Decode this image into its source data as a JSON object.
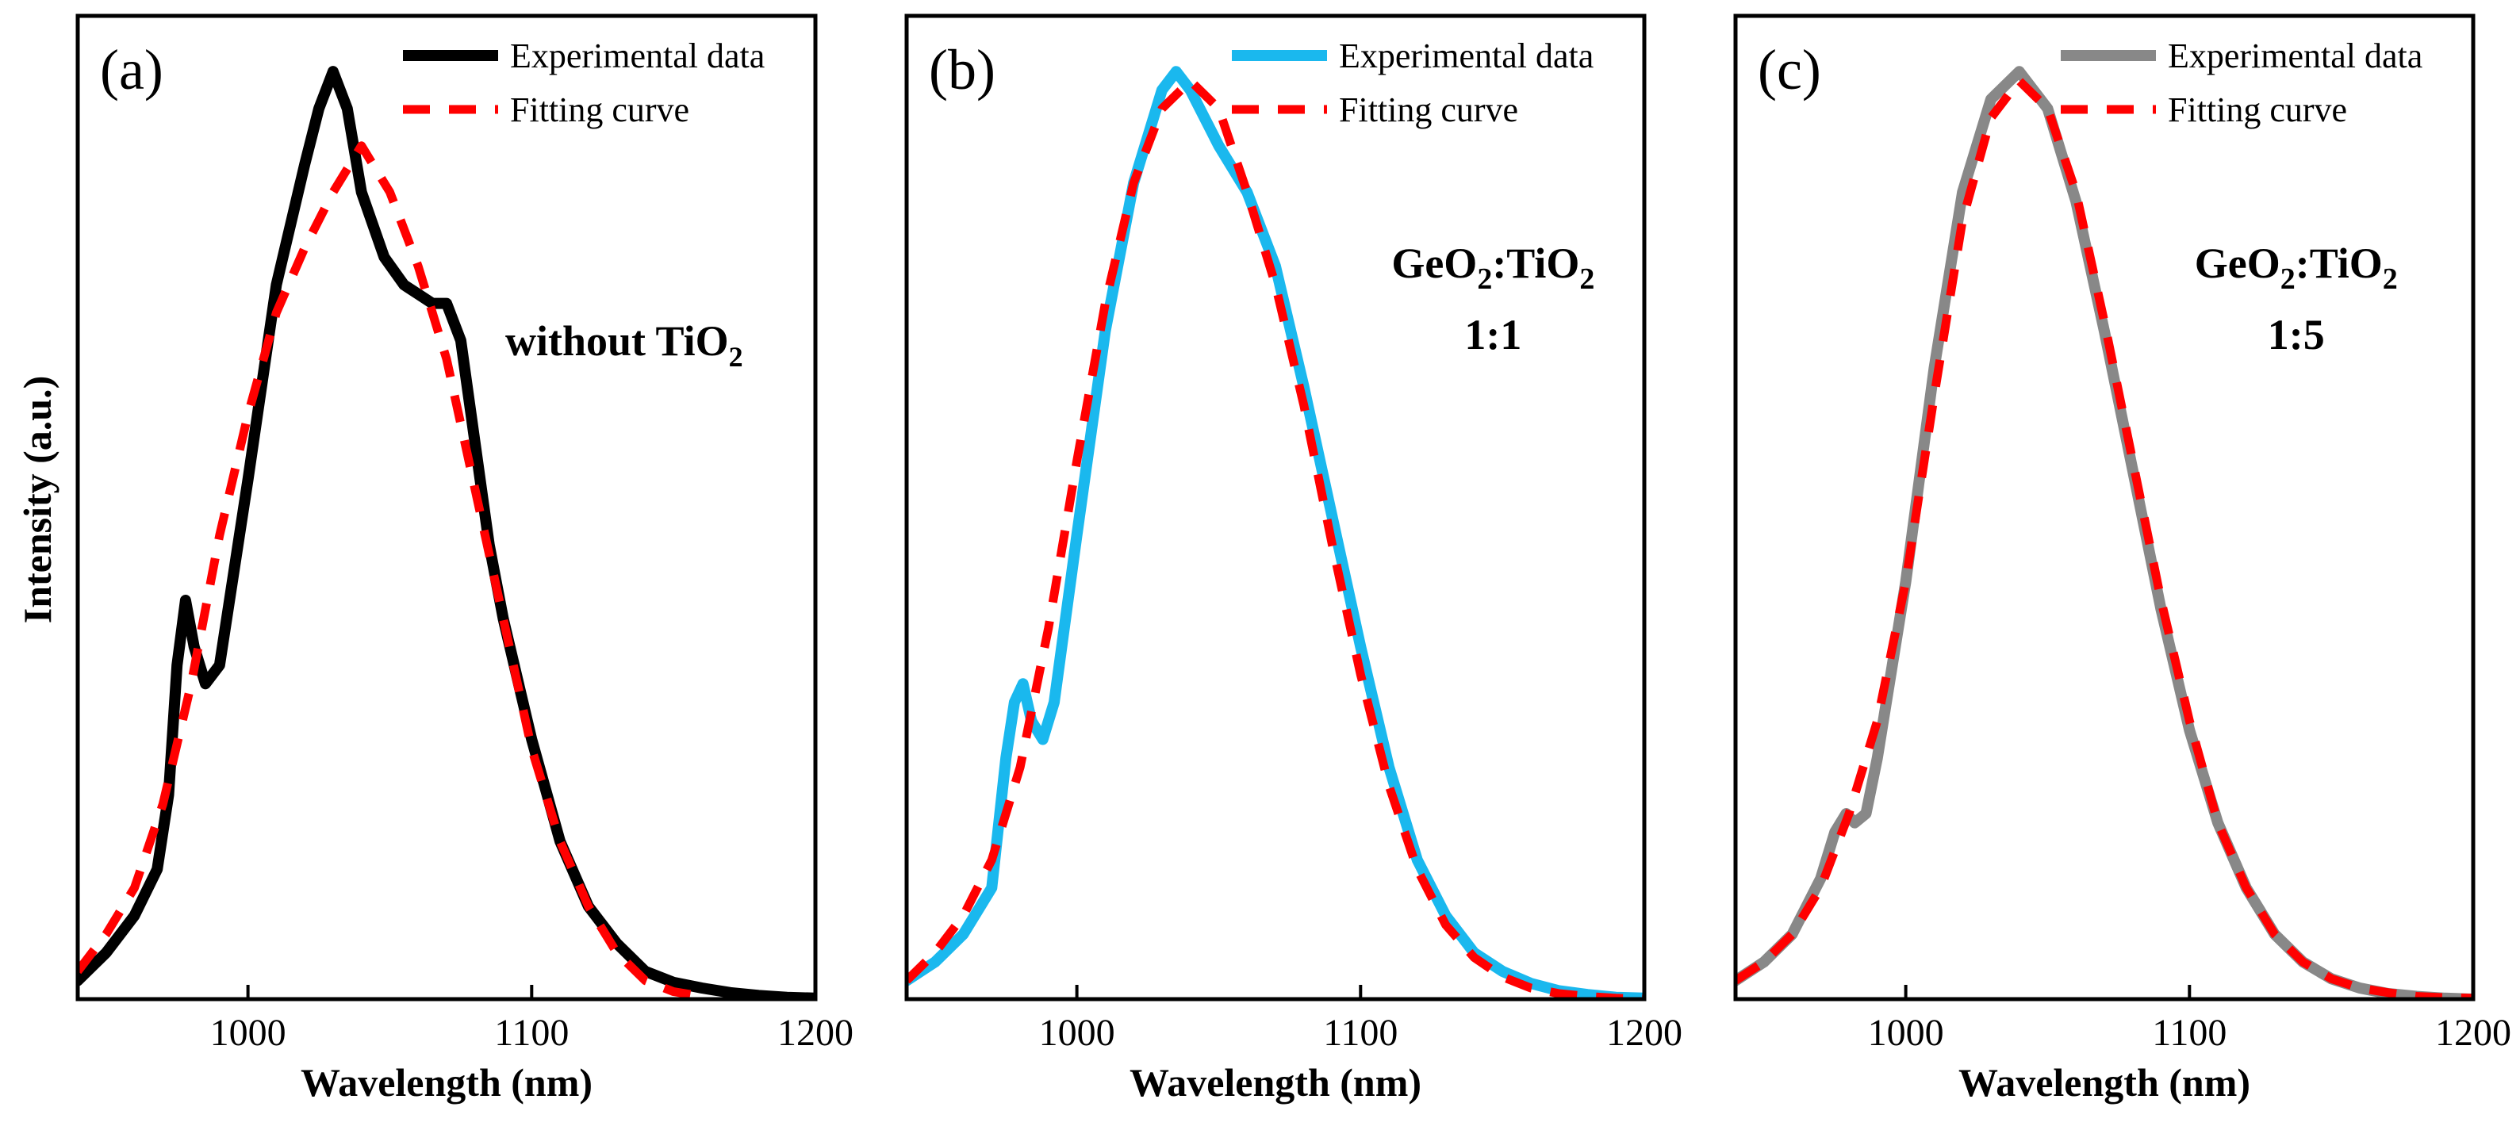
{
  "figure": {
    "ylabel": "Intensity (a.u.)"
  },
  "chart_data": [
    {
      "type": "line",
      "panel_label": "(a)",
      "xlabel": "Wavelength (nm)",
      "ylabel": "Intensity (a.u.)",
      "xlim": [
        940,
        1200
      ],
      "ylim": [
        0,
        1.06
      ],
      "xticks": [
        1000,
        1100,
        1200
      ],
      "xtick_labels": [
        "1000",
        "1100",
        "1200"
      ],
      "legend": {
        "position": "top-right",
        "entries": [
          "Experimental data",
          "Fitting curve"
        ]
      },
      "annotation": {
        "text": "without TiO",
        "subscript": "2"
      },
      "series": [
        {
          "name": "Experimental data",
          "color": "#000000",
          "style": "solid",
          "x": [
            940,
            950,
            960,
            968,
            972,
            975,
            978,
            981,
            985,
            990,
            1000,
            1010,
            1020,
            1025,
            1030,
            1035,
            1040,
            1048,
            1055,
            1060,
            1065,
            1070,
            1075,
            1080,
            1085,
            1090,
            1100,
            1110,
            1120,
            1130,
            1140,
            1150,
            1160,
            1170,
            1180,
            1190,
            1200
          ],
          "y": [
            0.02,
            0.05,
            0.09,
            0.14,
            0.22,
            0.36,
            0.43,
            0.38,
            0.34,
            0.36,
            0.56,
            0.77,
            0.9,
            0.96,
            1.0,
            0.96,
            0.87,
            0.8,
            0.77,
            0.76,
            0.75,
            0.75,
            0.71,
            0.6,
            0.49,
            0.41,
            0.28,
            0.17,
            0.1,
            0.06,
            0.03,
            0.018,
            0.012,
            0.007,
            0.004,
            0.002,
            0.001
          ]
        },
        {
          "name": "Fitting curve",
          "color": "#ff0000",
          "style": "dashed",
          "x": [
            940,
            950,
            960,
            970,
            980,
            990,
            1000,
            1010,
            1020,
            1030,
            1040,
            1050,
            1060,
            1070,
            1080,
            1090,
            1100,
            1110,
            1120,
            1130,
            1140,
            1150,
            1160
          ],
          "y": [
            0.03,
            0.07,
            0.12,
            0.21,
            0.34,
            0.5,
            0.63,
            0.74,
            0.81,
            0.87,
            0.92,
            0.87,
            0.79,
            0.69,
            0.55,
            0.41,
            0.27,
            0.17,
            0.1,
            0.05,
            0.02,
            0.008,
            0.003
          ]
        }
      ]
    },
    {
      "type": "line",
      "panel_label": "(b)",
      "xlabel": "Wavelength (nm)",
      "ylabel": "",
      "xlim": [
        940,
        1200
      ],
      "ylim": [
        0,
        1.06
      ],
      "xticks": [
        1000,
        1100,
        1200
      ],
      "xtick_labels": [
        "1000",
        "1100",
        "1200"
      ],
      "legend": {
        "position": "top-right",
        "entries": [
          "Experimental data",
          "Fitting curve"
        ]
      },
      "annotation": {
        "line1_main": "GeO",
        "line1_sub1": "2",
        "line1_mid": ":TiO",
        "line1_sub2": "2",
        "line2": "1:1"
      },
      "series": [
        {
          "name": "Experimental data",
          "color": "#1ab8ee",
          "style": "solid",
          "x": [
            940,
            950,
            960,
            970,
            975,
            978,
            981,
            984,
            988,
            992,
            1000,
            1010,
            1020,
            1030,
            1035,
            1040,
            1050,
            1060,
            1070,
            1080,
            1090,
            1100,
            1110,
            1120,
            1130,
            1140,
            1150,
            1160,
            1170,
            1180,
            1190,
            1200
          ],
          "y": [
            0.02,
            0.04,
            0.07,
            0.12,
            0.26,
            0.32,
            0.34,
            0.3,
            0.28,
            0.32,
            0.5,
            0.72,
            0.88,
            0.98,
            1.0,
            0.98,
            0.92,
            0.87,
            0.79,
            0.66,
            0.52,
            0.38,
            0.25,
            0.15,
            0.09,
            0.05,
            0.03,
            0.017,
            0.009,
            0.005,
            0.002,
            0.001
          ]
        },
        {
          "name": "Fitting curve",
          "color": "#ff0000",
          "style": "dashed",
          "x": [
            940,
            950,
            960,
            970,
            980,
            990,
            1000,
            1010,
            1020,
            1030,
            1040,
            1050,
            1060,
            1070,
            1080,
            1090,
            1100,
            1110,
            1120,
            1130,
            1140,
            1150,
            1160,
            1170,
            1180,
            1190,
            1200
          ],
          "y": [
            0.02,
            0.05,
            0.09,
            0.15,
            0.25,
            0.4,
            0.58,
            0.75,
            0.88,
            0.96,
            0.99,
            0.96,
            0.87,
            0.77,
            0.64,
            0.49,
            0.35,
            0.23,
            0.14,
            0.08,
            0.045,
            0.024,
            0.012,
            0.006,
            0.003,
            0.001,
            0.0
          ]
        }
      ]
    },
    {
      "type": "line",
      "panel_label": "(c)",
      "xlabel": "Wavelength (nm)",
      "ylabel": "",
      "xlim": [
        940,
        1200
      ],
      "ylim": [
        0,
        1.06
      ],
      "xticks": [
        1000,
        1100,
        1200
      ],
      "xtick_labels": [
        "1000",
        "1100",
        "1200"
      ],
      "legend": {
        "position": "top-right",
        "entries": [
          "Experimental data",
          "Fitting curve"
        ]
      },
      "annotation": {
        "line1_main": "GeO",
        "line1_sub1": "2",
        "line1_mid": ":TiO",
        "line1_sub2": "2",
        "line2": "1:5"
      },
      "series": [
        {
          "name": "Experimental data",
          "color": "#888888",
          "style": "solid",
          "x": [
            940,
            950,
            960,
            970,
            975,
            979,
            982,
            986,
            990,
            1000,
            1010,
            1020,
            1030,
            1040,
            1050,
            1060,
            1070,
            1080,
            1090,
            1100,
            1110,
            1120,
            1130,
            1140,
            1150,
            1160,
            1170,
            1180,
            1190,
            1200
          ],
          "y": [
            0.02,
            0.04,
            0.07,
            0.13,
            0.18,
            0.2,
            0.19,
            0.2,
            0.26,
            0.45,
            0.68,
            0.87,
            0.97,
            1.0,
            0.96,
            0.86,
            0.72,
            0.57,
            0.42,
            0.29,
            0.19,
            0.12,
            0.07,
            0.04,
            0.022,
            0.012,
            0.006,
            0.003,
            0.001,
            0.0
          ]
        },
        {
          "name": "Fitting curve",
          "color": "#ff0000",
          "style": "dashed",
          "x": [
            940,
            950,
            960,
            970,
            980,
            990,
            1000,
            1010,
            1020,
            1030,
            1040,
            1050,
            1060,
            1070,
            1080,
            1090,
            1100,
            1110,
            1120,
            1130,
            1140,
            1150,
            1160,
            1170,
            1180,
            1190,
            1200
          ],
          "y": [
            0.02,
            0.04,
            0.07,
            0.12,
            0.2,
            0.3,
            0.45,
            0.65,
            0.84,
            0.95,
            0.99,
            0.96,
            0.87,
            0.73,
            0.58,
            0.43,
            0.3,
            0.19,
            0.12,
            0.07,
            0.04,
            0.022,
            0.012,
            0.007,
            0.003,
            0.0015,
            0.001
          ]
        }
      ]
    }
  ]
}
